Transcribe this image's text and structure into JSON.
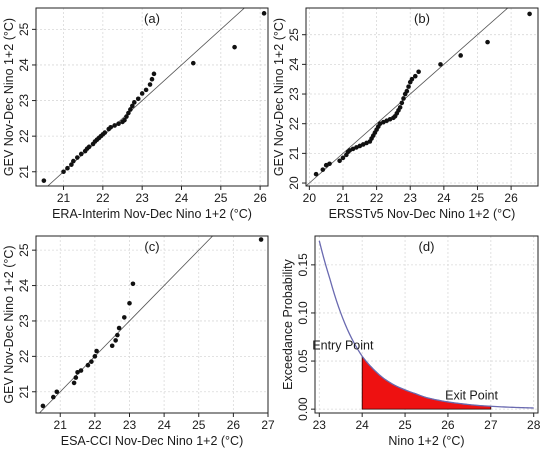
{
  "chart_data": [
    {
      "type": "scatter",
      "panel": "(a)",
      "xlabel": "ERA-Interim Nov-Dec Nino 1+2 (°C)",
      "ylabel": "GEV Nov-Dec Nino 1+2 (°C)",
      "xlim": [
        20.3,
        26.2
      ],
      "ylim": [
        20.6,
        25.6
      ],
      "xticks": [
        21,
        22,
        23,
        24,
        25,
        26
      ],
      "yticks": [
        21,
        22,
        23,
        24,
        25
      ],
      "grid": true,
      "reference_line": "y=x",
      "points": [
        [
          20.5,
          20.75
        ],
        [
          21.0,
          21.0
        ],
        [
          21.1,
          21.1
        ],
        [
          21.2,
          21.2
        ],
        [
          21.25,
          21.3
        ],
        [
          21.35,
          21.4
        ],
        [
          21.45,
          21.5
        ],
        [
          21.55,
          21.58
        ],
        [
          21.6,
          21.65
        ],
        [
          21.65,
          21.7
        ],
        [
          21.75,
          21.78
        ],
        [
          21.8,
          21.85
        ],
        [
          21.85,
          21.9
        ],
        [
          21.9,
          21.95
        ],
        [
          21.95,
          22.0
        ],
        [
          22.0,
          22.05
        ],
        [
          22.05,
          22.1
        ],
        [
          22.15,
          22.2
        ],
        [
          22.2,
          22.25
        ],
        [
          22.3,
          22.3
        ],
        [
          22.4,
          22.35
        ],
        [
          22.5,
          22.4
        ],
        [
          22.55,
          22.45
        ],
        [
          22.6,
          22.55
        ],
        [
          22.65,
          22.65
        ],
        [
          22.7,
          22.75
        ],
        [
          22.75,
          22.85
        ],
        [
          22.8,
          22.95
        ],
        [
          22.9,
          23.05
        ],
        [
          23.0,
          23.2
        ],
        [
          23.1,
          23.3
        ],
        [
          23.2,
          23.45
        ],
        [
          23.25,
          23.6
        ],
        [
          23.3,
          23.75
        ],
        [
          24.3,
          24.05
        ],
        [
          25.35,
          24.5
        ],
        [
          26.1,
          25.45
        ]
      ]
    },
    {
      "type": "scatter",
      "panel": "(b)",
      "xlabel": "ERSSTv5 Nov-Dec Nino 1+2 (°C)",
      "ylabel": "GEV Nov-Dec Nino 1+2 (°C)",
      "xlim": [
        19.9,
        26.8
      ],
      "ylim": [
        19.9,
        25.9
      ],
      "xticks": [
        20,
        21,
        22,
        23,
        24,
        25,
        26
      ],
      "yticks": [
        20,
        21,
        22,
        23,
        24,
        25
      ],
      "grid": true,
      "reference_line": "y=x",
      "points": [
        [
          20.2,
          20.3
        ],
        [
          20.4,
          20.45
        ],
        [
          20.5,
          20.6
        ],
        [
          20.6,
          20.65
        ],
        [
          20.9,
          20.75
        ],
        [
          21.0,
          20.85
        ],
        [
          21.1,
          20.95
        ],
        [
          21.15,
          21.05
        ],
        [
          21.2,
          21.1
        ],
        [
          21.3,
          21.15
        ],
        [
          21.4,
          21.2
        ],
        [
          21.5,
          21.25
        ],
        [
          21.6,
          21.3
        ],
        [
          21.7,
          21.35
        ],
        [
          21.8,
          21.4
        ],
        [
          21.85,
          21.5
        ],
        [
          21.9,
          21.6
        ],
        [
          21.95,
          21.7
        ],
        [
          22.0,
          21.8
        ],
        [
          22.05,
          21.9
        ],
        [
          22.1,
          22.0
        ],
        [
          22.2,
          22.05
        ],
        [
          22.3,
          22.1
        ],
        [
          22.4,
          22.15
        ],
        [
          22.5,
          22.2
        ],
        [
          22.55,
          22.25
        ],
        [
          22.6,
          22.35
        ],
        [
          22.65,
          22.45
        ],
        [
          22.7,
          22.55
        ],
        [
          22.75,
          22.7
        ],
        [
          22.8,
          22.85
        ],
        [
          22.85,
          23.0
        ],
        [
          22.9,
          23.1
        ],
        [
          22.95,
          23.25
        ],
        [
          23.0,
          23.4
        ],
        [
          23.05,
          23.5
        ],
        [
          23.15,
          23.6
        ],
        [
          23.25,
          23.75
        ],
        [
          23.9,
          24.0
        ],
        [
          24.5,
          24.3
        ],
        [
          25.3,
          24.75
        ],
        [
          26.55,
          25.7
        ]
      ]
    },
    {
      "type": "scatter",
      "panel": "(c)",
      "xlabel": "ESA-CCI Nov-Dec Nino 1+2 (°C)",
      "ylabel": "GEV Nov-Dec Nino 1+2 (°C)",
      "xlim": [
        20.3,
        27.0
      ],
      "ylim": [
        20.4,
        25.4
      ],
      "xticks": [
        21,
        22,
        23,
        24,
        25,
        26,
        27
      ],
      "yticks": [
        21,
        22,
        23,
        24,
        25
      ],
      "grid": true,
      "reference_line": "y=x",
      "points": [
        [
          20.5,
          20.6
        ],
        [
          20.8,
          20.85
        ],
        [
          20.9,
          21.0
        ],
        [
          21.4,
          21.25
        ],
        [
          21.45,
          21.4
        ],
        [
          21.5,
          21.55
        ],
        [
          21.6,
          21.6
        ],
        [
          21.8,
          21.75
        ],
        [
          21.9,
          21.85
        ],
        [
          22.0,
          22.0
        ],
        [
          22.05,
          22.15
        ],
        [
          22.5,
          22.3
        ],
        [
          22.6,
          22.45
        ],
        [
          22.65,
          22.6
        ],
        [
          22.7,
          22.8
        ],
        [
          22.85,
          23.1
        ],
        [
          23.0,
          23.5
        ],
        [
          23.1,
          24.05
        ],
        [
          26.8,
          25.3
        ]
      ]
    },
    {
      "type": "area",
      "panel": "(d)",
      "xlabel": "Nino 1+2 (°C)",
      "ylabel": "Exceedance Probability",
      "xlim": [
        22.9,
        28.1
      ],
      "ylim": [
        -0.004,
        0.18
      ],
      "xticks": [
        23,
        24,
        25,
        26,
        27,
        28
      ],
      "yticks": [
        0.0,
        0.05,
        0.1,
        0.15
      ],
      "ytick_labels": [
        "0.00",
        "0.05",
        "0.10",
        "0.15"
      ],
      "grid": true,
      "curve": {
        "x": [
          23.0,
          23.25,
          23.5,
          23.75,
          24.0,
          24.25,
          24.5,
          24.75,
          25.0,
          25.25,
          25.5,
          25.75,
          26.0,
          26.25,
          26.5,
          26.75,
          27.0,
          27.25,
          27.5,
          27.75,
          28.0
        ],
        "y": [
          0.175,
          0.135,
          0.1,
          0.074,
          0.055,
          0.042,
          0.032,
          0.025,
          0.02,
          0.016,
          0.012,
          0.0095,
          0.0075,
          0.006,
          0.0047,
          0.0037,
          0.003,
          0.0024,
          0.0019,
          0.0015,
          0.0012
        ]
      },
      "shaded_range": [
        24.0,
        27.0
      ],
      "annotations": [
        {
          "text": "Entry Point",
          "x": 23.55,
          "y": 0.062
        },
        {
          "text": "Exit Point",
          "x": 26.55,
          "y": 0.01
        }
      ]
    }
  ]
}
